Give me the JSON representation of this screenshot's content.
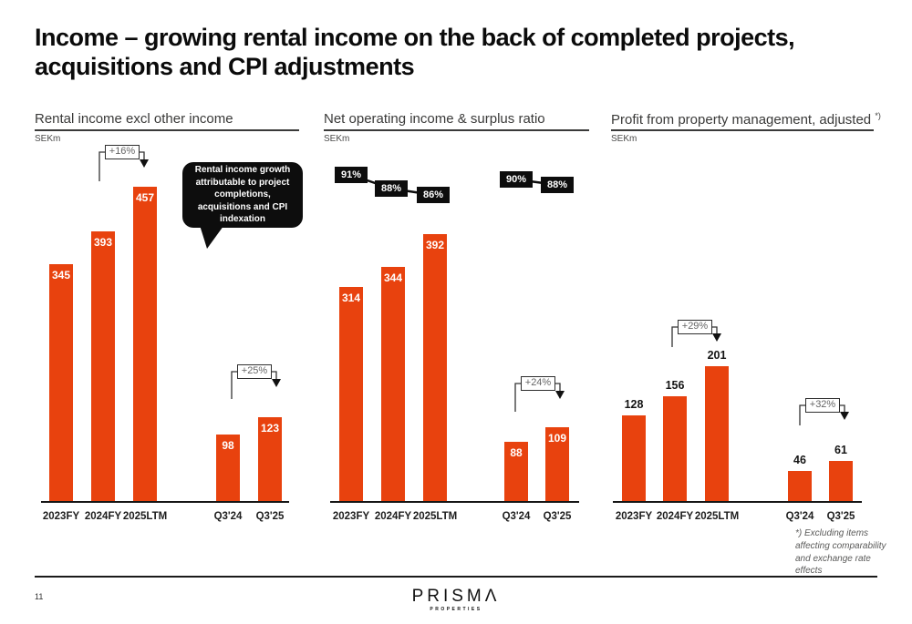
{
  "slide": {
    "title_line1": "Income – growing rental income on the back of completed projects,",
    "title_line2": "acquisitions and CPI adjustments",
    "page_number": "11",
    "logo_brand": "PRISMΛ",
    "logo_sub": "PROPERTIES"
  },
  "colors": {
    "bar_orange": "#E8420E",
    "callout_black": "#0d0d0d",
    "header_gray": "#3a3a39",
    "annotation_line": "#333333",
    "ratio_line": "#0c0c0c"
  },
  "chart_data": [
    {
      "type": "bar",
      "title": "Rental income excl other income",
      "unit_label": "SEKm",
      "categories": [
        "2023FY",
        "2024FY",
        "2025LTM",
        "Q3'24",
        "Q3'25"
      ],
      "values": [
        345,
        393,
        457,
        98,
        123
      ],
      "value_label_position": "inside-top",
      "ylim": [
        0,
        480
      ],
      "annotations": [
        {
          "label": "+16%",
          "from": "2024FY",
          "to": "2025LTM"
        },
        {
          "label": "+25%",
          "from": "Q3'24",
          "to": "Q3'25"
        }
      ],
      "callout": "Rental income growth attributable to project completions, acquisitions and CPI indexation"
    },
    {
      "type": "bar",
      "title": "Net operating income & surplus ratio",
      "unit_label": "SEKm",
      "categories": [
        "2023FY",
        "2024FY",
        "2025LTM",
        "Q3'24",
        "Q3'25"
      ],
      "values": [
        314,
        344,
        392,
        88,
        109
      ],
      "value_label_position": "inside-top",
      "surplus_ratios": [
        "91%",
        "88%",
        "86%",
        "90%",
        "88%"
      ],
      "ylim": [
        0,
        480
      ],
      "annotations": [
        {
          "label": "+24%",
          "from": "Q3'24",
          "to": "Q3'25"
        }
      ]
    },
    {
      "type": "bar",
      "title": "Profit from property management, adjusted",
      "title_superscript": "*)",
      "unit_label": "SEKm",
      "categories": [
        "2023FY",
        "2024FY",
        "2025LTM",
        "Q3'24",
        "Q3'25"
      ],
      "values": [
        128,
        156,
        201,
        46,
        61
      ],
      "value_label_position": "above",
      "ylim": [
        0,
        480
      ],
      "annotations": [
        {
          "label": "+29%",
          "from": "2024FY",
          "to": "2025LTM"
        },
        {
          "label": "+32%",
          "from": "Q3'24",
          "to": "Q3'25"
        }
      ],
      "footnote": "*) Excluding items affecting comparability and exchange rate effects"
    }
  ]
}
